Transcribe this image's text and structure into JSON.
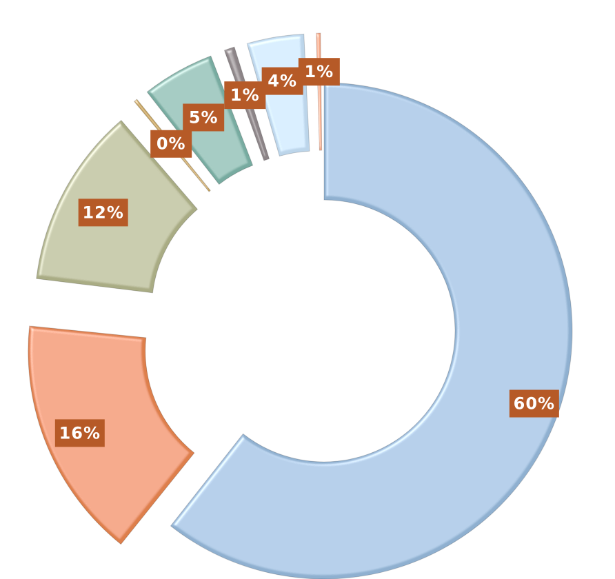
{
  "chart_data": {
    "type": "pie",
    "variant": "exploded-donut",
    "slices": [
      {
        "value": 60,
        "label": "60%",
        "color": "#8fb0d0"
      },
      {
        "value": 16,
        "label": "16%",
        "color": "#de7f4c"
      },
      {
        "value": 12,
        "label": "12%",
        "color": "#a9ac84"
      },
      {
        "value": 0.4,
        "label": "0%",
        "color": "#c5a35d"
      },
      {
        "value": 5,
        "label": "5%",
        "color": "#77aba0"
      },
      {
        "value": 1,
        "label": "1%",
        "color": "#8c8487"
      },
      {
        "value": 4,
        "label": "4%",
        "color": "#bcd5ea"
      },
      {
        "value": 0.6,
        "label": "1%",
        "color": "#f2a98a"
      }
    ],
    "label_bg_color": "#b65a27",
    "label_text_color": "#ffffff",
    "legend": "none",
    "title": ""
  }
}
